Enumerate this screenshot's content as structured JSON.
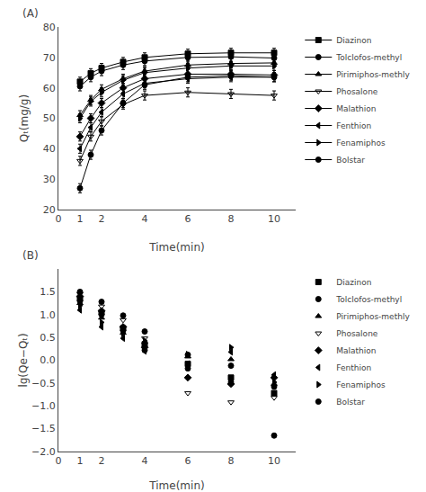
{
  "chart_data": [
    {
      "type": "line",
      "annotations": [
        "(A)"
      ],
      "xlabel": "Time(min)",
      "ylabel": "Qₜ(mg/g)",
      "x": [
        1,
        1.5,
        2,
        3,
        4,
        6,
        8,
        10
      ],
      "series": [
        {
          "name": "Diazinon",
          "marker": "square",
          "values": [
            62.0,
            64.8,
            66.5,
            68.5,
            70.0,
            71.2,
            71.5,
            71.5
          ]
        },
        {
          "name": "Tolclofos-methyl",
          "marker": "circle",
          "values": [
            60.5,
            63.5,
            65.5,
            67.5,
            68.8,
            70.0,
            70.2,
            69.8
          ]
        },
        {
          "name": "Pirimiphos-methly",
          "marker": "triangle-up",
          "values": [
            51.0,
            56.0,
            59.5,
            63.0,
            65.5,
            67.5,
            68.0,
            68.2
          ]
        },
        {
          "name": "Phosalone",
          "marker": "triangle-down-open",
          "values": [
            36.0,
            44.0,
            49.0,
            54.5,
            57.5,
            58.5,
            58.0,
            57.5
          ]
        },
        {
          "name": "Malathion",
          "marker": "diamond",
          "values": [
            44.0,
            50.0,
            55.0,
            60.0,
            63.0,
            64.5,
            64.5,
            64.2
          ]
        },
        {
          "name": "Fenthion",
          "marker": "triangle-left",
          "values": [
            40.0,
            47.0,
            52.0,
            58.0,
            61.5,
            63.0,
            63.5,
            63.5
          ]
        },
        {
          "name": "Fenamiphos",
          "marker": "triangle-right",
          "values": [
            50.0,
            55.5,
            58.5,
            62.5,
            65.0,
            66.5,
            67.2,
            67.2
          ]
        },
        {
          "name": "Bolstar",
          "marker": "circle",
          "values": [
            27.0,
            38.0,
            46.0,
            55.0,
            61.0,
            63.5,
            64.0,
            63.5
          ]
        }
      ],
      "error": 1.5,
      "color": "black",
      "xlim": [
        0,
        11
      ],
      "ylim": [
        20,
        80
      ],
      "xticks": [
        0,
        1,
        2,
        4,
        6,
        8,
        10
      ],
      "yticks": [
        20,
        30,
        40,
        50,
        60,
        70,
        80
      ],
      "grid": false,
      "legend": "right"
    },
    {
      "type": "scatter",
      "annotations": [
        "(B)"
      ],
      "xlabel": "Time(min)",
      "ylabel": "lg(Qe−Qₜ)",
      "x": [
        1,
        2,
        3,
        4,
        6,
        8,
        10
      ],
      "series": [
        {
          "name": "Diazinon",
          "marker": "square",
          "values": [
            1.35,
            1.05,
            0.7,
            0.35,
            -0.08,
            -0.38,
            -0.72
          ]
        },
        {
          "name": "Tolclofos-methyl",
          "marker": "circle",
          "values": [
            1.3,
            1.0,
            0.65,
            0.22,
            -0.18,
            -0.48,
            -0.58
          ]
        },
        {
          "name": "Pirimiphos-methly",
          "marker": "triangle-up",
          "values": [
            1.25,
            0.93,
            0.6,
            0.4,
            0.08,
            0.02,
            -0.52
          ]
        },
        {
          "name": "Phosalone",
          "marker": "triangle-down-open",
          "values": [
            1.45,
            1.18,
            0.88,
            0.48,
            -0.72,
            -0.92,
            -0.82
          ]
        },
        {
          "name": "Malathion",
          "marker": "diamond",
          "values": [
            1.4,
            1.08,
            0.73,
            0.28,
            -0.38,
            -0.52,
            -0.38
          ]
        },
        {
          "name": "Fenthion",
          "marker": "triangle-left",
          "values": [
            1.1,
            0.73,
            0.48,
            0.2,
            -0.08,
            0.18,
            -0.32
          ]
        },
        {
          "name": "Fenamiphos",
          "marker": "triangle-right",
          "values": [
            1.2,
            0.83,
            0.58,
            0.43,
            0.13,
            0.28,
            -0.48
          ]
        },
        {
          "name": "Bolstar",
          "marker": "circle",
          "values": [
            1.5,
            1.28,
            0.98,
            0.63,
            0.12,
            -0.12,
            -1.65
          ]
        }
      ],
      "color": "black",
      "xlim": [
        0,
        11
      ],
      "ylim": [
        -2.0,
        2.0
      ],
      "xticks": [
        0,
        1,
        2,
        4,
        6,
        8,
        10
      ],
      "yticks": [
        {
          "value": -2.0,
          "label": "−2.0"
        },
        {
          "value": -1.5,
          "label": "−1.5"
        },
        {
          "value": -1.0,
          "label": "−1.0"
        },
        {
          "value": -0.5,
          "label": "−0.5"
        },
        {
          "value": 0.0,
          "label": "0.0"
        },
        0.5,
        {
          "value": 1.0,
          "label": "1.0"
        },
        1.5
      ],
      "grid": false,
      "legend": "right"
    }
  ]
}
